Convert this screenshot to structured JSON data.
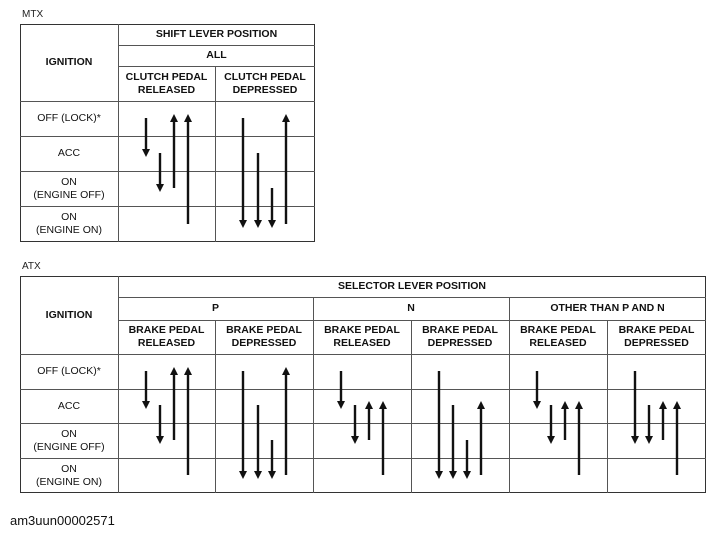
{
  "mtx": {
    "label": "MTX",
    "ignition_header": "IGNITION",
    "lever_header": "SHIFT LEVER POSITION",
    "groups": [
      "ALL"
    ],
    "sub_headers": [
      "CLUTCH PEDAL\nRELEASED",
      "CLUTCH PEDAL\nDEPRESSED"
    ],
    "rows": [
      "OFF (LOCK)*",
      "ACC",
      "ON\n(ENGINE OFF)",
      "ON\n(ENGINE ON)"
    ]
  },
  "atx": {
    "label": "ATX",
    "ignition_header": "IGNITION",
    "lever_header": "SELECTOR LEVER POSITION",
    "groups": [
      "P",
      "N",
      "OTHER THAN P AND N"
    ],
    "sub_headers": [
      "BRAKE PEDAL\nRELEASED",
      "BRAKE PEDAL\nDEPRESSED",
      "BRAKE PEDAL\nRELEASED",
      "BRAKE PEDAL\nDEPRESSED",
      "BRAKE PEDAL\nRELEASED",
      "BRAKE PEDAL\nDEPRESSED"
    ],
    "rows": [
      "OFF (LOCK)*",
      "ACC",
      "ON\n(ENGINE OFF)",
      "ON\n(ENGINE ON)"
    ]
  },
  "figure_code": "am3uun00002571"
}
